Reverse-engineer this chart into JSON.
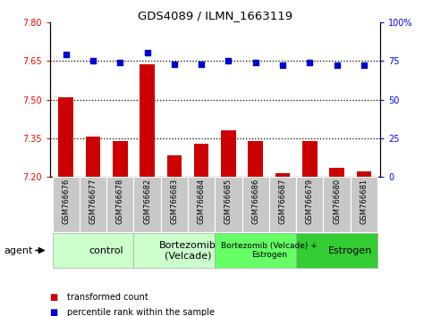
{
  "title": "GDS4089 / ILMN_1663119",
  "samples": [
    "GSM766676",
    "GSM766677",
    "GSM766678",
    "GSM766682",
    "GSM766683",
    "GSM766684",
    "GSM766685",
    "GSM766686",
    "GSM766687",
    "GSM766679",
    "GSM766680",
    "GSM766681"
  ],
  "bar_values": [
    7.51,
    7.355,
    7.34,
    7.638,
    7.285,
    7.33,
    7.38,
    7.34,
    7.215,
    7.34,
    7.235,
    7.22
  ],
  "dot_values": [
    79,
    75,
    74,
    80,
    73,
    73,
    75,
    74,
    72,
    74,
    72,
    72
  ],
  "ylim_left": [
    7.2,
    7.8
  ],
  "ylim_right": [
    0,
    100
  ],
  "yticks_left": [
    7.2,
    7.35,
    7.5,
    7.65,
    7.8
  ],
  "yticks_right": [
    0,
    25,
    50,
    75,
    100
  ],
  "bar_color": "#cc0000",
  "dot_color": "#0000cc",
  "bar_bottom": 7.2,
  "groups": [
    {
      "label": "control",
      "start": 0,
      "end": 3,
      "color": "#ccffcc",
      "fontsize": 8
    },
    {
      "label": "Bortezomib\n(Velcade)",
      "start": 3,
      "end": 6,
      "color": "#ccffcc",
      "fontsize": 8
    },
    {
      "label": "Bortezomib (Velcade) +\nEstrogen",
      "start": 6,
      "end": 9,
      "color": "#66ff66",
      "fontsize": 6.5
    },
    {
      "label": "Estrogen",
      "start": 9,
      "end": 12,
      "color": "#33cc33",
      "fontsize": 8
    }
  ],
  "agent_label": "agent",
  "legend_bar_label": "transformed count",
  "legend_dot_label": "percentile rank within the sample",
  "hline_values": [
    7.35,
    7.5,
    7.65
  ],
  "label_bg_color": "#c8c8c8",
  "plot_bg": "#ffffff"
}
